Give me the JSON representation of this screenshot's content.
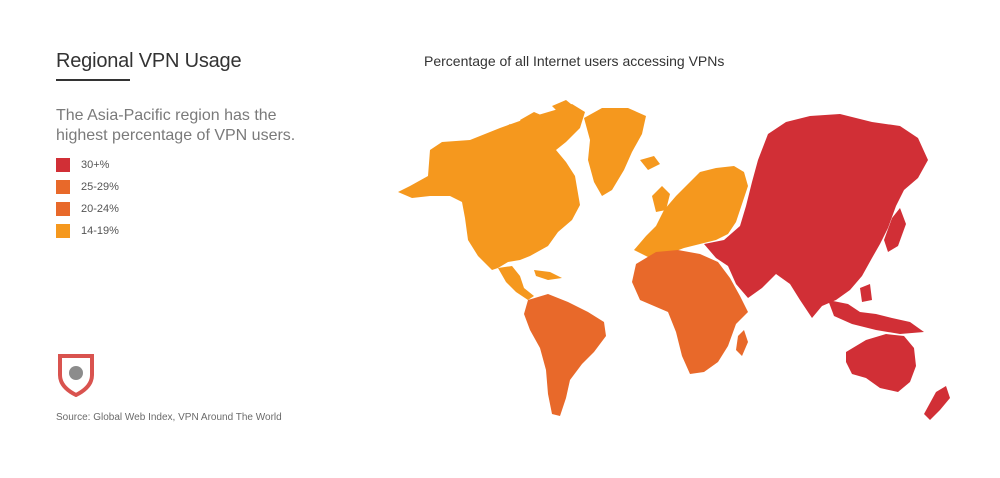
{
  "header": {
    "title": "Regional VPN Usage",
    "description": "The Asia-Pacific region has the highest percentage of VPN users."
  },
  "map": {
    "title": "Percentage of all Internet users accessing VPNs",
    "regions": [
      {
        "name": "Asia-Pacific",
        "bucket": "30+%",
        "color": "#d12f36"
      },
      {
        "name": "Middle East & Africa",
        "bucket": "20-24%",
        "color": "#e8692a"
      },
      {
        "name": "Latin America",
        "bucket": "20-24%",
        "color": "#e8692a"
      },
      {
        "name": "North America",
        "bucket": "14-19%",
        "color": "#f5981e"
      },
      {
        "name": "Europe",
        "bucket": "14-19%",
        "color": "#f5981e"
      }
    ]
  },
  "legend": [
    {
      "label": "30+%",
      "color": "#d12f36"
    },
    {
      "label": "25-29%",
      "color": "#e8692a"
    },
    {
      "label": "20-24%",
      "color": "#e8692a"
    },
    {
      "label": "14-19%",
      "color": "#f5981e"
    }
  ],
  "logo": {
    "icon": "shield-icon",
    "color": "#d9534f"
  },
  "footer": {
    "source": "Source: Global Web Index, VPN Around The World"
  }
}
